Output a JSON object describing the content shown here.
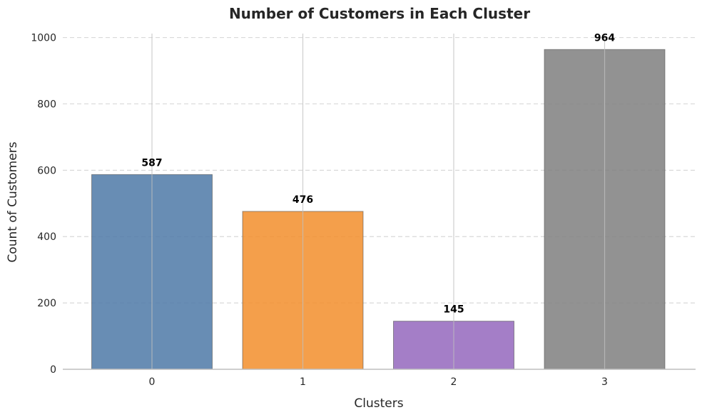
{
  "chart_data": {
    "type": "bar",
    "title": "Number of Customers in Each Cluster",
    "xlabel": "Clusters",
    "ylabel": "Count of Customers",
    "categories": [
      "0",
      "1",
      "2",
      "3"
    ],
    "values": [
      587,
      476,
      145,
      964
    ],
    "value_labels": [
      "587",
      "476",
      "145",
      "964"
    ],
    "colors": [
      "#4e79a7",
      "#f28e2b",
      "#9467bd",
      "#7f7f7f"
    ],
    "ylim": [
      0,
      1012
    ],
    "yticks": [
      0,
      200,
      400,
      600,
      800,
      1000
    ],
    "ytick_labels": [
      "0",
      "200",
      "400",
      "600",
      "800",
      "1000"
    ],
    "grid": {
      "y": "dashed",
      "x": "solid"
    },
    "legend": "none"
  }
}
